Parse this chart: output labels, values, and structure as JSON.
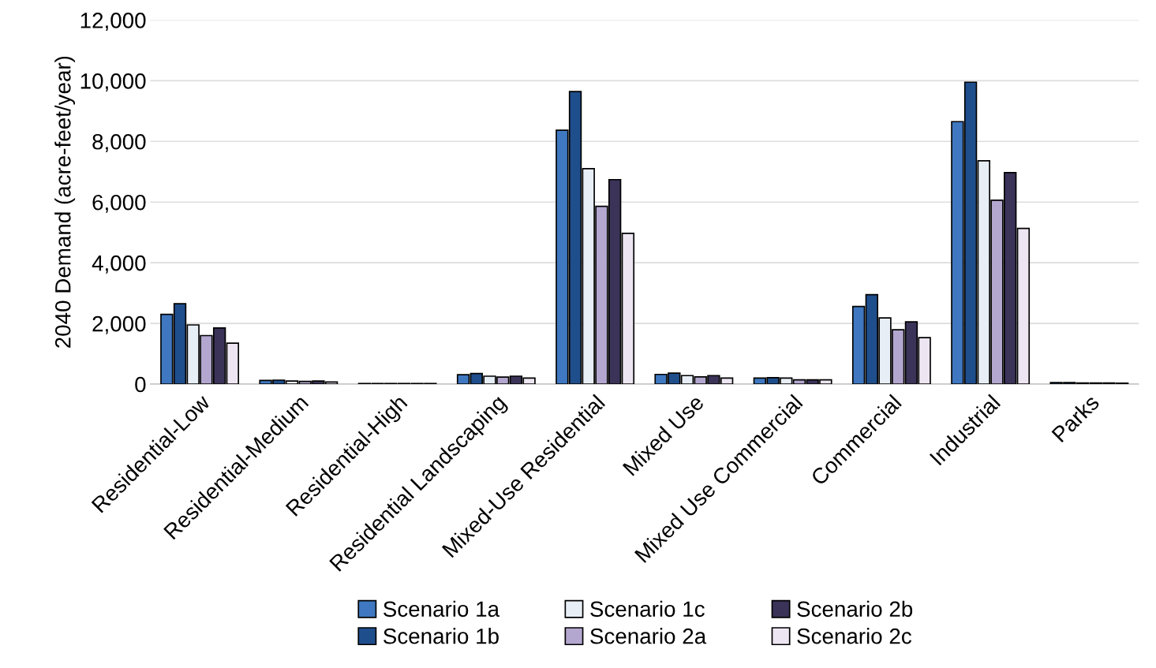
{
  "chart_data": {
    "type": "bar",
    "ylabel": "2040 Demand (acre-feet/year)",
    "categories": [
      "Residential-Low",
      "Residential-Medium",
      "Residential-High",
      "Residential Landscaping",
      "Mixed-Use Residential",
      "Mixed Use",
      "Mixed Use Commercial",
      "Commercial",
      "Industrial",
      "Parks"
    ],
    "series": [
      {
        "name": "Scenario 1a",
        "color": "#3f78c0",
        "values": [
          2300,
          120,
          20,
          310,
          8370,
          320,
          200,
          2560,
          8650,
          50
        ]
      },
      {
        "name": "Scenario 1b",
        "color": "#1f4e8c",
        "values": [
          2650,
          130,
          20,
          350,
          9640,
          360,
          210,
          2950,
          9950,
          50
        ]
      },
      {
        "name": "Scenario 1c",
        "color": "#e8eef6",
        "values": [
          1950,
          100,
          20,
          260,
          7100,
          280,
          200,
          2180,
          7360,
          40
        ]
      },
      {
        "name": "Scenario 2a",
        "color": "#b3a7cf",
        "values": [
          1600,
          90,
          20,
          230,
          5860,
          240,
          140,
          1790,
          6060,
          40
        ]
      },
      {
        "name": "Scenario 2b",
        "color": "#3b3358",
        "values": [
          1850,
          100,
          20,
          260,
          6740,
          280,
          140,
          2050,
          6970,
          40
        ]
      },
      {
        "name": "Scenario 2c",
        "color": "#ede6f2",
        "values": [
          1350,
          70,
          20,
          200,
          4970,
          200,
          140,
          1530,
          5130,
          30
        ]
      }
    ],
    "ylim": [
      0,
      12000
    ],
    "yticks": [
      {
        "value": 0,
        "label": "0"
      },
      {
        "value": 2000,
        "label": "2,000"
      },
      {
        "value": 4000,
        "label": "4,000"
      },
      {
        "value": 6000,
        "label": "6,000"
      },
      {
        "value": 8000,
        "label": "8,000"
      },
      {
        "value": 10000,
        "label": "10,000"
      },
      {
        "value": 12000,
        "label": "12,000"
      }
    ],
    "grid": "y",
    "legend": "bottom"
  }
}
